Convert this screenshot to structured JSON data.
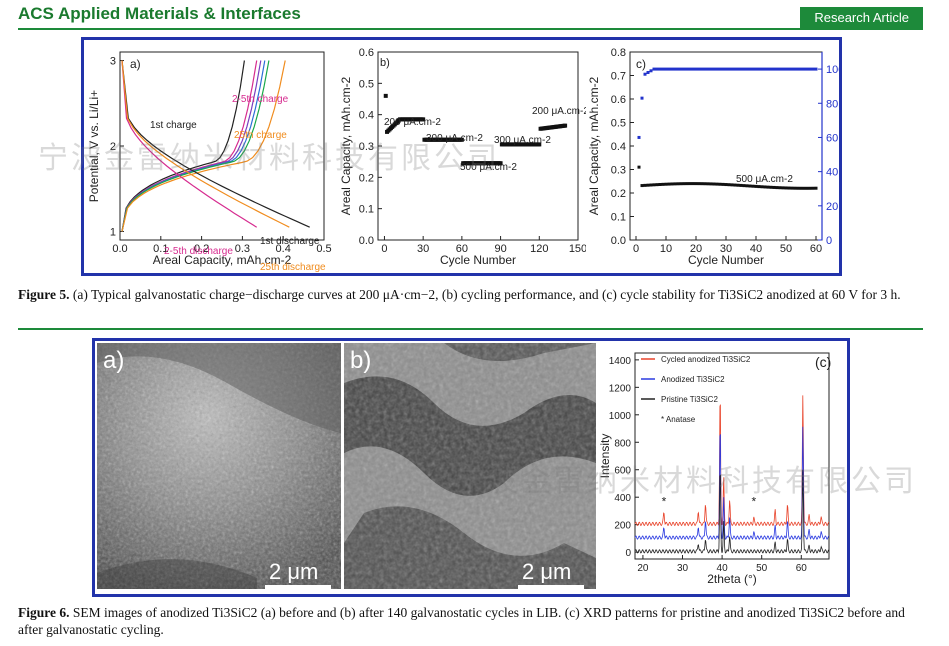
{
  "header": {
    "journal": "ACS Applied Materials & Interfaces",
    "badge": "Research Article"
  },
  "fig5": {
    "caption_label": "Figure 5.",
    "caption_text": "(a) Typical galvanostatic charge−discharge curves at 200 μA·cm−2, (b) cycling performance, and (c) cycle stability for Ti3SiC2 anodized at 60 V for 3 h."
  },
  "fig6": {
    "caption_label": "Figure 6.",
    "caption_text": "SEM images of anodized Ti3SiC2 (a) before and (b) after 140 galvanostatic cycles in LIB. (c) XRD patterns for pristine and anodized Ti3SiC2 before and after galvanostatic cycling.",
    "panel_a": "a)",
    "panel_b": "b)",
    "scale_a": "2 μm",
    "scale_b": "2 μm"
  },
  "watermark": "宁波金雷纳米材料科技有限公司",
  "chart_data": [
    {
      "panel": "a)",
      "type": "line",
      "xlabel": "Areal Capacity, mAh.cm-2",
      "ylabel": "Potential, V vs. Li/Li+",
      "xlim": [
        0,
        0.5
      ],
      "ylim": [
        0.9,
        3.1
      ],
      "xticks": [
        "0.0",
        "0.1",
        "0.2",
        "0.3",
        "0.4",
        "0.5"
      ],
      "yticks": [
        "1",
        "2",
        "3"
      ],
      "annotations": [
        "1st charge",
        "2-5th charge",
        "25th charge",
        "1st discharge",
        "2-5th discharge",
        "25th discharge"
      ],
      "series": [
        {
          "name": "1st charge",
          "color": "#222222",
          "endcap": 0.3
        },
        {
          "name": "2-5th charge",
          "color": "#d62b8f",
          "endcap": 0.33
        },
        {
          "name": "2-5th charge",
          "color": "#7a3fbf",
          "endcap": 0.34
        },
        {
          "name": "2-5th charge",
          "color": "#2b6fd6",
          "endcap": 0.35
        },
        {
          "name": "2-5th charge",
          "color": "#1aa84a",
          "endcap": 0.36
        },
        {
          "name": "25th charge",
          "color": "#f08c1e",
          "endcap": 0.4
        },
        {
          "name": "1st discharge",
          "color": "#222222",
          "endcap": 0.46
        },
        {
          "name": "2-5th discharge",
          "color": "#d62b8f",
          "endcap": 0.33
        },
        {
          "name": "25th discharge",
          "color": "#f08c1e",
          "endcap": 0.41
        }
      ]
    },
    {
      "panel": "b)",
      "type": "scatter",
      "xlabel": "Cycle Number",
      "ylabel": "Areal Capacity, mAh.cm-2",
      "xlim": [
        -5,
        150
      ],
      "ylim": [
        0,
        0.6
      ],
      "xticks": [
        "0",
        "30",
        "60",
        "90",
        "120",
        "150"
      ],
      "yticks": [
        "0.0",
        "0.1",
        "0.2",
        "0.3",
        "0.4",
        "0.5",
        "0.6"
      ],
      "annotations": [
        "200 μA.cm-2",
        "300 μA.cm-2",
        "500 μA.cm-2",
        "300 μA.cm-2",
        "200 μA.cm-2"
      ],
      "segments": [
        {
          "from": 1,
          "to": 1,
          "value": 0.46
        },
        {
          "from": 2,
          "to": 30,
          "value": 0.37
        },
        {
          "from": 31,
          "to": 60,
          "value": 0.32
        },
        {
          "from": 61,
          "to": 90,
          "value": 0.245
        },
        {
          "from": 91,
          "to": 120,
          "value": 0.305
        },
        {
          "from": 121,
          "to": 140,
          "value": 0.36
        }
      ]
    },
    {
      "panel": "c)",
      "type": "scatter",
      "xlabel": "Cycle Number",
      "ylabel": "Areal Capacity, mAh.cm-2",
      "y2label": "Coulombic Efficiency, %",
      "xlim": [
        -2,
        62
      ],
      "ylim": [
        0,
        0.8
      ],
      "y2lim": [
        0,
        110
      ],
      "xticks": [
        "0",
        "10",
        "20",
        "30",
        "40",
        "50",
        "60"
      ],
      "yticks": [
        "0.0",
        "0.1",
        "0.2",
        "0.3",
        "0.4",
        "0.5",
        "0.6",
        "0.7",
        "0.8"
      ],
      "y2ticks": [
        "0",
        "20",
        "40",
        "60",
        "80",
        "100"
      ],
      "annotations": [
        "500 μA.cm-2"
      ],
      "capacity": {
        "first": 0.31,
        "plateau": 0.23
      },
      "efficiency": {
        "first": 60,
        "second": 83,
        "plateau": 100
      }
    },
    {
      "panel": "(c)",
      "type": "line",
      "xlabel": "2theta (°)",
      "ylabel": "Intensity",
      "xlim": [
        18,
        67
      ],
      "ylim": [
        -50,
        1450
      ],
      "xticks": [
        "20",
        "30",
        "40",
        "50",
        "60"
      ],
      "yticks": [
        "0",
        "200",
        "400",
        "600",
        "800",
        "1000",
        "1200",
        "1400"
      ],
      "legend": [
        "Cycled anodized Ti3SiC2",
        "Anodized Ti3SiC2",
        "Pristine Ti3SiC2",
        "* Anatase"
      ],
      "series": [
        {
          "name": "Cycled anodized Ti3SiC2",
          "color": "#e8432a",
          "offset": 200
        },
        {
          "name": "Anodized Ti3SiC2",
          "color": "#2a3ae0",
          "offset": 100
        },
        {
          "name": "Pristine Ti3SiC2",
          "color": "#222222",
          "offset": 0
        }
      ],
      "anatase_marks": [
        25.3,
        48.0
      ]
    }
  ]
}
